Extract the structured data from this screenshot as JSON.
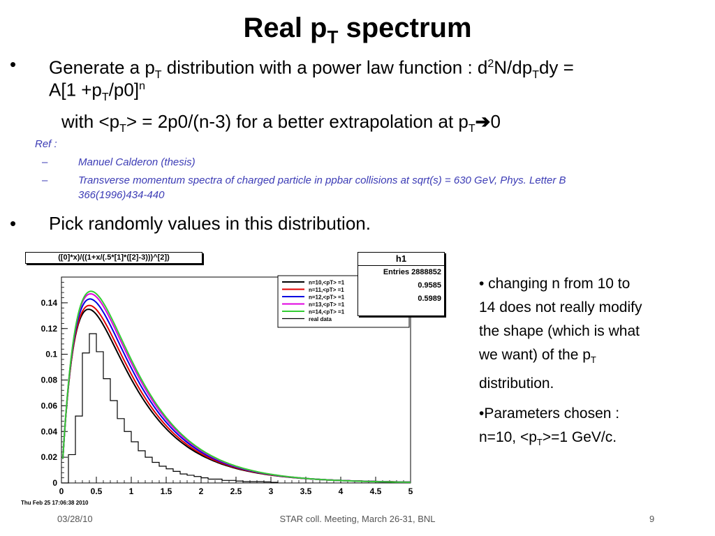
{
  "title": {
    "main": "Real p",
    "sub": "T",
    "tail": " spectrum"
  },
  "bullets": {
    "symbol": "•",
    "b1_line1": [
      "Generate a p",
      "T",
      " distribution with a power law function : d",
      "2",
      "N/dp",
      "T",
      "dy ="
    ],
    "b1_line2": [
      "A[1 +p",
      "T",
      "/p0]",
      "n"
    ],
    "b1_line3": [
      "with <p",
      "T",
      "> = 2p0/(n-3) for a better extrapolation at p",
      "T",
      "0"
    ],
    "b2": "Pick randomly values in this distribution."
  },
  "refs": {
    "header": "Ref :",
    "dash": "–",
    "r1": "Manuel Calderon (thesis)",
    "r2_line1": "Transverse momentum spectra of charged particle in ppbar collisions at sqrt(s) = 630 GeV, Phys. Letter B",
    "r2_line2": "366(1996)434-440"
  },
  "plot": {
    "function_label": "([0]*x)/((1+x/(.5*[1]*([2]-3)))^[2])",
    "stats_title": "h1",
    "stats_rows": [
      "Entries  2888852",
      "0.9585",
      "0.5989"
    ],
    "timestamp": "Thu Feb 25 17:06:38 2010"
  },
  "chart_data": {
    "type": "line",
    "title": "",
    "xlabel": "",
    "ylabel": "",
    "xlim": [
      0,
      5
    ],
    "ylim": [
      0,
      0.16
    ],
    "x_ticks": [
      "0",
      "0.5",
      "1",
      "1.5",
      "2",
      "2.5",
      "3",
      "3.5",
      "4",
      "4.5",
      "5"
    ],
    "y_ticks": [
      "0",
      "0.02",
      "0.04",
      "0.06",
      "0.08",
      "0.1",
      "0.12",
      "0.14"
    ],
    "legend_position": "top-right",
    "series": [
      {
        "name": "n=10,<pT> =1",
        "n": 10,
        "color": "#000000",
        "peak": 0.135
      },
      {
        "name": "n=11,<pT> =1",
        "n": 11,
        "color": "#e00000",
        "peak": 0.138
      },
      {
        "name": "n=12,<pT> =1",
        "n": 12,
        "color": "#0000e0",
        "peak": 0.143
      },
      {
        "name": "n=13,<pT> =1",
        "n": 13,
        "color": "#e000e0",
        "peak": 0.147
      },
      {
        "name": "n=14,<pT> =1",
        "n": 14,
        "color": "#33cc33",
        "peak": 0.149
      }
    ],
    "histogram": {
      "name": "real data",
      "bin_width": 0.1,
      "values": [
        0.0,
        0.022,
        0.052,
        0.101,
        0.116,
        0.102,
        0.081,
        0.064,
        0.05,
        0.04,
        0.032,
        0.025,
        0.02,
        0.016,
        0.013,
        0.011,
        0.009,
        0.007,
        0.006,
        0.005,
        0.004,
        0.003,
        0.003,
        0.002,
        0.002,
        0.0015,
        0.001,
        0.001,
        0.001,
        0.0008,
        0.0005
      ]
    }
  },
  "side_notes": {
    "n1_line1": "• changing n from 10 to",
    "n1_line2": "14 does not really modify",
    "n1_line3": "the shape (which is what",
    "n1_line4": [
      "we want) of the p",
      "T"
    ],
    "n1_line5": "distribution.",
    "n2_line1": "•Parameters chosen :",
    "n2_line2": [
      "n=10, <p",
      "T",
      ">=1 GeV/c."
    ]
  },
  "footer": {
    "date": "03/28/10",
    "meeting": "STAR coll. Meeting, March 26-31, BNL",
    "page": "9"
  }
}
